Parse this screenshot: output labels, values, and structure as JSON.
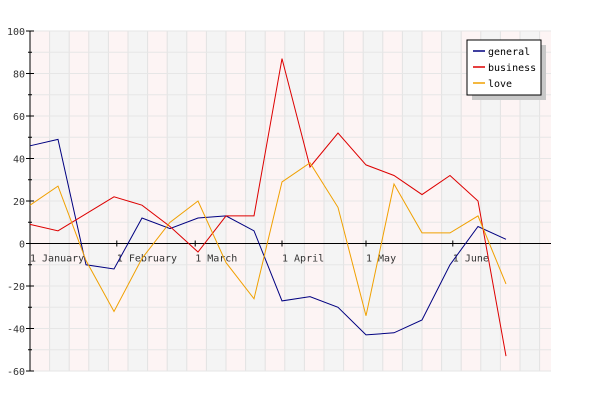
{
  "chart_data": {
    "type": "line",
    "title": "",
    "xlabel": "",
    "ylabel": "",
    "ylim": [
      -60,
      100
    ],
    "y_ticks": [
      -60,
      -40,
      -20,
      0,
      20,
      40,
      60,
      80,
      100
    ],
    "x_tick_labels": [
      "1 January",
      "1 February",
      "1 March",
      "1 April",
      "1 May",
      "1 June"
    ],
    "grid": true,
    "legend_position": "top-right",
    "x": [
      "2007-01-01",
      "2007-01-11",
      "2007-01-21",
      "2007-01-31",
      "2007-02-10",
      "2007-02-20",
      "2007-03-02",
      "2007-03-12",
      "2007-03-22",
      "2007-04-01",
      "2007-04-11",
      "2007-04-21",
      "2007-05-01",
      "2007-05-11",
      "2007-05-21",
      "2007-05-31",
      "2007-06-10",
      "2007-06-20"
    ],
    "series": [
      {
        "name": "general",
        "color": "#000080",
        "values": [
          46,
          49,
          -10,
          -12,
          12,
          7,
          12,
          13,
          6,
          -27,
          -25,
          -30,
          -43,
          -42,
          -36,
          -10,
          8,
          2
        ]
      },
      {
        "name": "business",
        "color": "#dd0000",
        "values": [
          9,
          6,
          14,
          22,
          18,
          8,
          -4,
          13,
          13,
          87,
          36,
          52,
          37,
          32,
          23,
          32,
          20,
          -53
        ]
      },
      {
        "name": "love",
        "color": "#f0a000",
        "values": [
          18,
          27,
          -8,
          -32,
          -7,
          10,
          20,
          -9,
          -26,
          29,
          38,
          17,
          -34,
          28,
          5,
          5,
          13,
          -19
        ]
      }
    ]
  }
}
